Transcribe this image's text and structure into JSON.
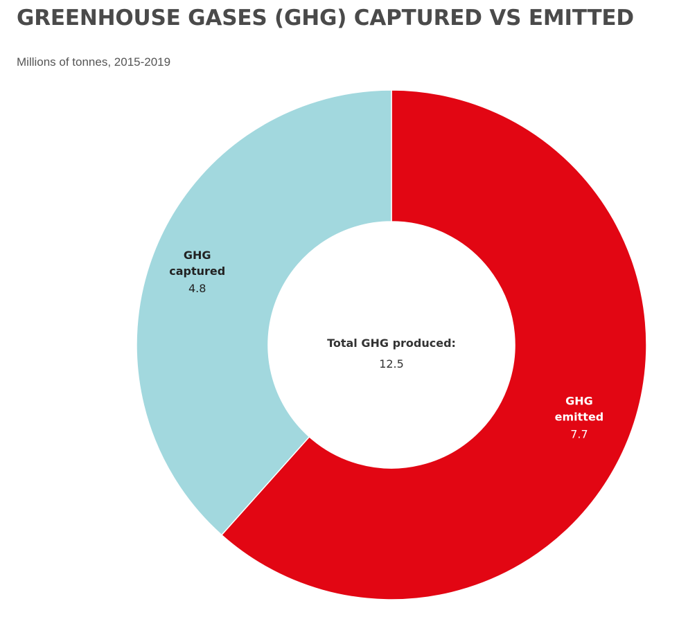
{
  "title": "GREENHOUSE GASES (GHG) CAPTURED VS EMITTED",
  "subtitle": "Millions of tonnes, 2015-2019",
  "center_label": {
    "name": "Total GHG produced:",
    "value": "12.5"
  },
  "colors": {
    "captured": "#a2d8de",
    "emitted": "#e20613",
    "captured_text": "#222222",
    "emitted_text": "#ffffff",
    "center_text": "#333333"
  },
  "chart_data": {
    "type": "pie",
    "variant": "donut",
    "title": "GREENHOUSE GASES (GHG) CAPTURED VS EMITTED",
    "subtitle": "Millions of tonnes, 2015-2019",
    "total": 12.5,
    "slices": [
      {
        "label_lines": [
          "GHG",
          "emitted"
        ],
        "value": 7.7,
        "display_value": "7.7",
        "color": "#e20613"
      },
      {
        "label_lines": [
          "GHG",
          "captured"
        ],
        "value": 4.8,
        "display_value": "4.8",
        "color": "#a2d8de"
      }
    ],
    "start_angle": "12 o'clock",
    "direction": "clockwise",
    "legend": "none"
  }
}
